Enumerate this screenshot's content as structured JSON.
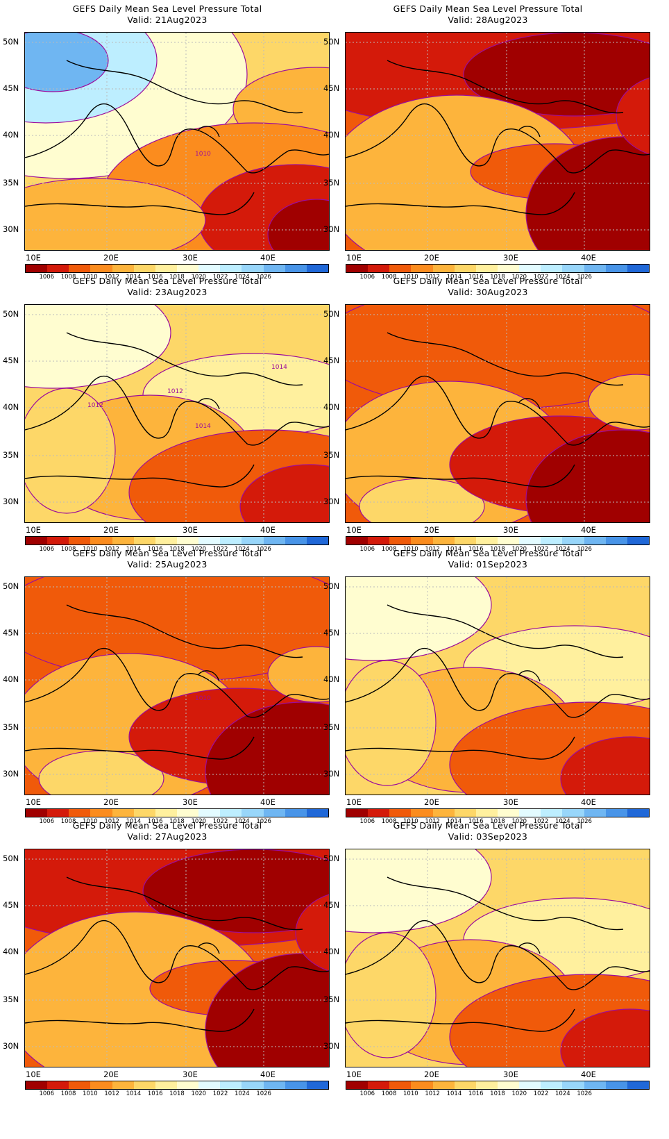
{
  "panels": [
    {
      "title": "GEFS Daily Mean Sea Level Pressure Total",
      "valid": "Valid:  21Aug2023",
      "scheme": "cool",
      "contour_labels": [
        "1010"
      ]
    },
    {
      "title": "GEFS Daily Mean Sea Level Pressure Total",
      "valid": "Valid:  28Aug2023",
      "scheme": "hot",
      "contour_labels": []
    },
    {
      "title": "GEFS Daily Mean Sea Level Pressure Total",
      "valid": "Valid:  23Aug2023",
      "scheme": "mild",
      "contour_labels": [
        "1014",
        "1014",
        "1012",
        "1012"
      ]
    },
    {
      "title": "GEFS Daily Mean Sea Level Pressure Total",
      "valid": "Valid:  30Aug2023",
      "scheme": "warm",
      "contour_labels": []
    },
    {
      "title": "GEFS Daily Mean Sea Level Pressure Total",
      "valid": "Valid:  25Aug2023",
      "scheme": "warm",
      "contour_labels": [
        "1010"
      ]
    },
    {
      "title": "GEFS Daily Mean Sea Level Pressure Total",
      "valid": "Valid:  01Sep2023",
      "scheme": "mild",
      "contour_labels": []
    },
    {
      "title": "GEFS Daily Mean Sea Level Pressure Total",
      "valid": "Valid:  27Aug2023",
      "scheme": "hot",
      "contour_labels": []
    },
    {
      "title": "GEFS Daily Mean Sea Level Pressure Total",
      "valid": "Valid:  03Sep2023",
      "scheme": "mild",
      "contour_labels": []
    }
  ],
  "lat_ticks": [
    "50N",
    "45N",
    "40N",
    "35N",
    "30N"
  ],
  "lon_ticks": [
    "10E",
    "20E",
    "30E",
    "40E"
  ],
  "colorbar": {
    "colors": [
      "#a00000",
      "#d41a0a",
      "#f05a0a",
      "#fb8c1e",
      "#fdb43c",
      "#fdd768",
      "#fff09e",
      "#fffdd0",
      "#e3fbff",
      "#bdeeff",
      "#98d6fa",
      "#6fb6f2",
      "#4894e8",
      "#2068d8"
    ],
    "labels": [
      "1006",
      "1008",
      "1010",
      "1012",
      "1014",
      "1016",
      "1018",
      "1020",
      "1022",
      "1024",
      "1026"
    ]
  },
  "contour_color": "#9c0c9c"
}
